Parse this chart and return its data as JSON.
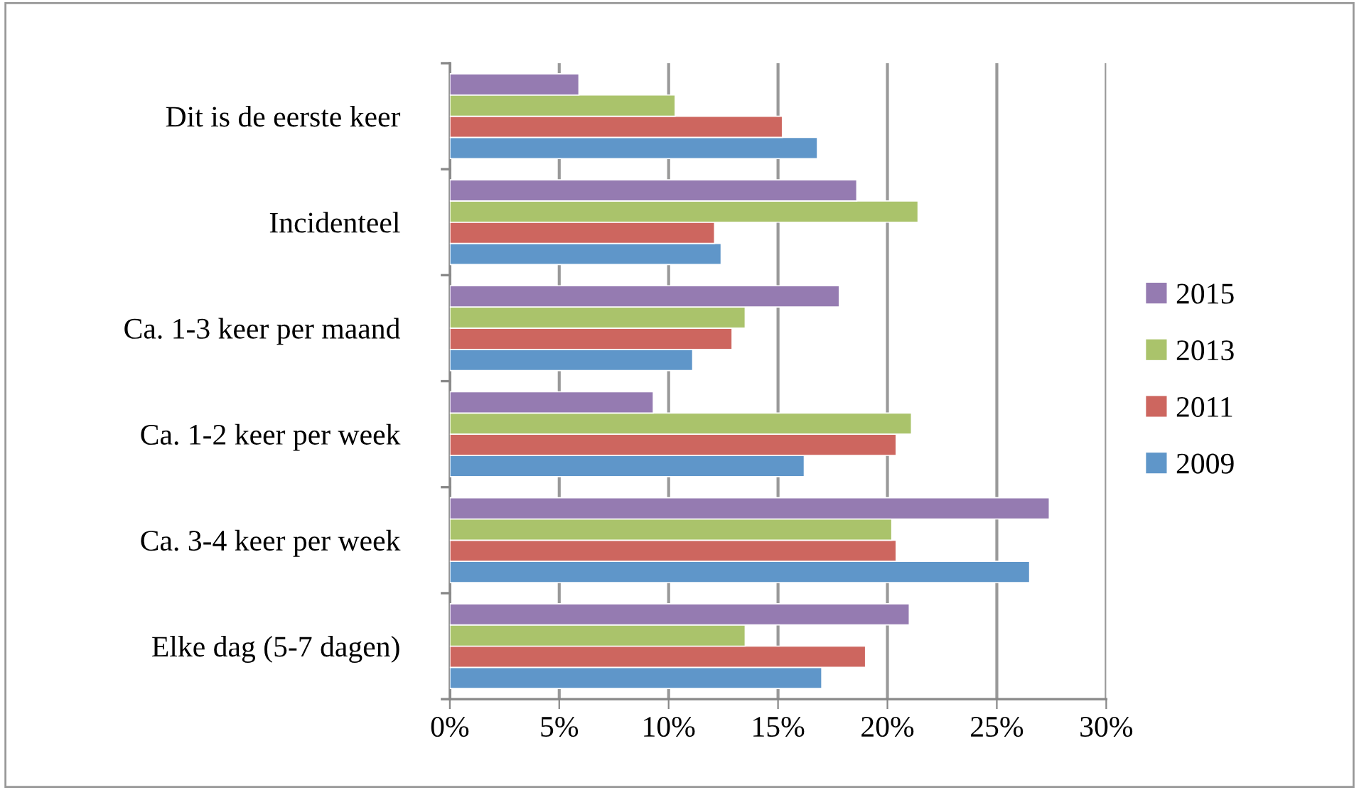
{
  "chart_data": {
    "type": "bar",
    "orientation": "horizontal",
    "categories": [
      "Dit is de eerste keer",
      "Incidenteel",
      "Ca. 1-3 keer per maand",
      "Ca. 1-2 keer per week",
      "Ca. 3-4 keer per week",
      "Elke dag (5-7 dagen)"
    ],
    "series": [
      {
        "name": "2009",
        "color": "#5f96c9",
        "values": [
          16.8,
          12.4,
          11.1,
          16.2,
          26.5,
          17.0
        ]
      },
      {
        "name": "2011",
        "color": "#cd665f",
        "values": [
          15.2,
          12.1,
          12.9,
          20.4,
          20.4,
          19.0
        ]
      },
      {
        "name": "2013",
        "color": "#aac36b",
        "values": [
          10.3,
          21.4,
          13.5,
          21.1,
          20.2,
          13.5
        ]
      },
      {
        "name": "2015",
        "color": "#957bb1",
        "values": [
          5.9,
          18.6,
          17.8,
          9.3,
          27.4,
          21.0
        ]
      }
    ],
    "xlim": [
      0,
      30
    ],
    "xticks": [
      {
        "value": 0,
        "label": "0%"
      },
      {
        "value": 5,
        "label": "5%"
      },
      {
        "value": 10,
        "label": "10%"
      },
      {
        "value": 15,
        "label": "15%"
      },
      {
        "value": 20,
        "label": "20%"
      },
      {
        "value": 25,
        "label": "25%"
      },
      {
        "value": 30,
        "label": "30%"
      }
    ],
    "grid": "x",
    "legend": "right"
  }
}
